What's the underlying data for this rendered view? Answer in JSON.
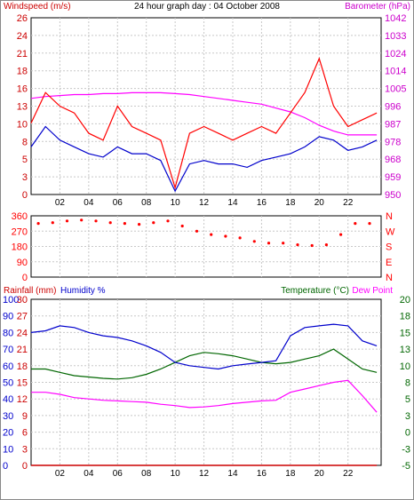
{
  "panel1": {
    "title": "24 hour graph day : 04 October 2008",
    "left_label": "Windspeed (m/s)",
    "right_label": "Barometer (hPa)",
    "left_ticks": [
      "0",
      "3",
      "5",
      "8",
      "10",
      "13",
      "16",
      "18",
      "21",
      "24",
      "26"
    ],
    "right_ticks": [
      "950",
      "959",
      "968",
      "978",
      "987",
      "996",
      "1005",
      "1014",
      "1024",
      "1033",
      "1042"
    ],
    "colors": {
      "gust": "#ff0000",
      "avg": "#0000cc",
      "baro": "#ff00ff",
      "left_label": "#cc0000",
      "right_label": "#cc00cc"
    }
  },
  "panel2": {
    "left_ticks": [
      "0",
      "90",
      "180",
      "270",
      "360"
    ],
    "right_ticks": [
      "N",
      "E",
      "S",
      "W",
      "N"
    ],
    "color": "#ff0000"
  },
  "panel3": {
    "label_rain": "Rainfall (mm)",
    "label_hum": "Humidity %",
    "label_temp": "Temperature (°C)",
    "label_dew": "Dew Point",
    "rain_ticks": [
      "0",
      "3",
      "6",
      "9",
      "12",
      "15",
      "18",
      "21",
      "24",
      "27",
      "30"
    ],
    "hum_ticks": [
      "0",
      "10",
      "20",
      "30",
      "40",
      "50",
      "60",
      "70",
      "80",
      "90",
      "100"
    ],
    "temp_ticks": [
      "-5",
      "-3",
      "0",
      "3",
      "5",
      "8",
      "10",
      "13",
      "15",
      "18",
      "20"
    ],
    "colors": {
      "rain": "#cc0000",
      "hum": "#0000cc",
      "temp": "#006600",
      "dew": "#ff00ff"
    }
  },
  "x_ticks": [
    "02",
    "04",
    "06",
    "08",
    "10",
    "12",
    "14",
    "16",
    "18",
    "20",
    "22"
  ],
  "chart_data": [
    {
      "type": "line",
      "title": "24 hour graph day : 04 October 2008",
      "x": [
        0,
        1,
        2,
        3,
        4,
        5,
        6,
        7,
        8,
        9,
        10,
        11,
        12,
        13,
        14,
        15,
        16,
        17,
        18,
        19,
        20,
        21,
        22,
        23,
        24
      ],
      "xlim": [
        0,
        24.3
      ],
      "series": [
        {
          "name": "Windspeed (m/s)",
          "axis": "left",
          "values": [
            10.5,
            15,
            13,
            12,
            9,
            8,
            13,
            10,
            9,
            8,
            1,
            9,
            10,
            9,
            8,
            9,
            10,
            9,
            12,
            15,
            20,
            13,
            10,
            11,
            12
          ]
        },
        {
          "name": "Windspeed (m/s)",
          "axis": "left",
          "values": [
            7,
            10,
            8,
            7,
            6,
            5.5,
            7,
            6,
            6,
            5,
            0.5,
            4.5,
            5,
            4.5,
            4.5,
            4,
            5,
            5.5,
            6,
            7,
            8.5,
            8,
            6.5,
            7,
            8
          ]
        },
        {
          "name": "Barometer (hPa)",
          "axis": "right",
          "values": [
            1000,
            1001,
            1001.5,
            1002,
            1002,
            1002.5,
            1002.5,
            1003,
            1003,
            1003,
            1002.5,
            1002,
            1001,
            1000,
            999,
            998,
            997,
            995,
            993,
            990,
            986,
            983,
            981,
            981,
            981
          ]
        }
      ],
      "ylim_left": [
        0,
        26
      ],
      "ylim_right": [
        950,
        1042
      ]
    },
    {
      "type": "scatter",
      "x": [
        0,
        1,
        2,
        3,
        4,
        5,
        6,
        7,
        8,
        9,
        10,
        11,
        12,
        13,
        14,
        15,
        16,
        17,
        18,
        19,
        20,
        21,
        22,
        23
      ],
      "series": [
        {
          "name": "",
          "values": [
            315,
            320,
            330,
            335,
            330,
            320,
            315,
            310,
            320,
            330,
            300,
            270,
            250,
            240,
            230,
            210,
            200,
            200,
            190,
            185,
            190,
            250,
            315,
            315
          ]
        }
      ],
      "ylim": [
        0,
        360
      ]
    },
    {
      "type": "line",
      "x": [
        0,
        1,
        2,
        3,
        4,
        5,
        6,
        7,
        8,
        9,
        10,
        11,
        12,
        13,
        14,
        15,
        16,
        17,
        18,
        19,
        20,
        21,
        22,
        23,
        24
      ],
      "xlim": [
        0,
        24.3
      ],
      "series": [
        {
          "name": "Rainfall (mm)",
          "axis": "rain",
          "values": [
            0,
            0,
            0,
            0,
            0,
            0,
            0,
            0,
            0,
            0,
            0,
            0,
            0,
            0,
            0,
            0,
            0,
            0,
            0,
            0,
            0,
            0,
            0,
            0,
            0
          ]
        },
        {
          "name": "Humidity %",
          "axis": "hum",
          "values": [
            80,
            81,
            84,
            83,
            80,
            78,
            77,
            75,
            72,
            68,
            62,
            60,
            59,
            58,
            60,
            61,
            62,
            63,
            78,
            83,
            84,
            85,
            84,
            75,
            72
          ]
        },
        {
          "name": "Temperature (°C)",
          "axis": "temp",
          "values": [
            9.5,
            9.5,
            9,
            8.5,
            8.3,
            8.1,
            8,
            8.2,
            8.7,
            9.5,
            10.5,
            11.5,
            12,
            11.8,
            11.5,
            11,
            10.5,
            10.3,
            10.5,
            11,
            11.5,
            12.5,
            11,
            9.5,
            9
          ]
        },
        {
          "name": "Dew Point",
          "axis": "temp",
          "values": [
            6,
            6,
            5.7,
            5.2,
            5,
            4.8,
            4.7,
            4.6,
            4.5,
            4.2,
            4,
            3.7,
            3.8,
            4,
            4.3,
            4.5,
            4.7,
            4.8,
            6,
            6.5,
            7,
            7.5,
            7.8,
            5.5,
            3
          ]
        }
      ],
      "ylim_rain": [
        0,
        30
      ],
      "ylim_hum": [
        0,
        100
      ],
      "ylim_temp": [
        -5,
        20
      ]
    }
  ]
}
